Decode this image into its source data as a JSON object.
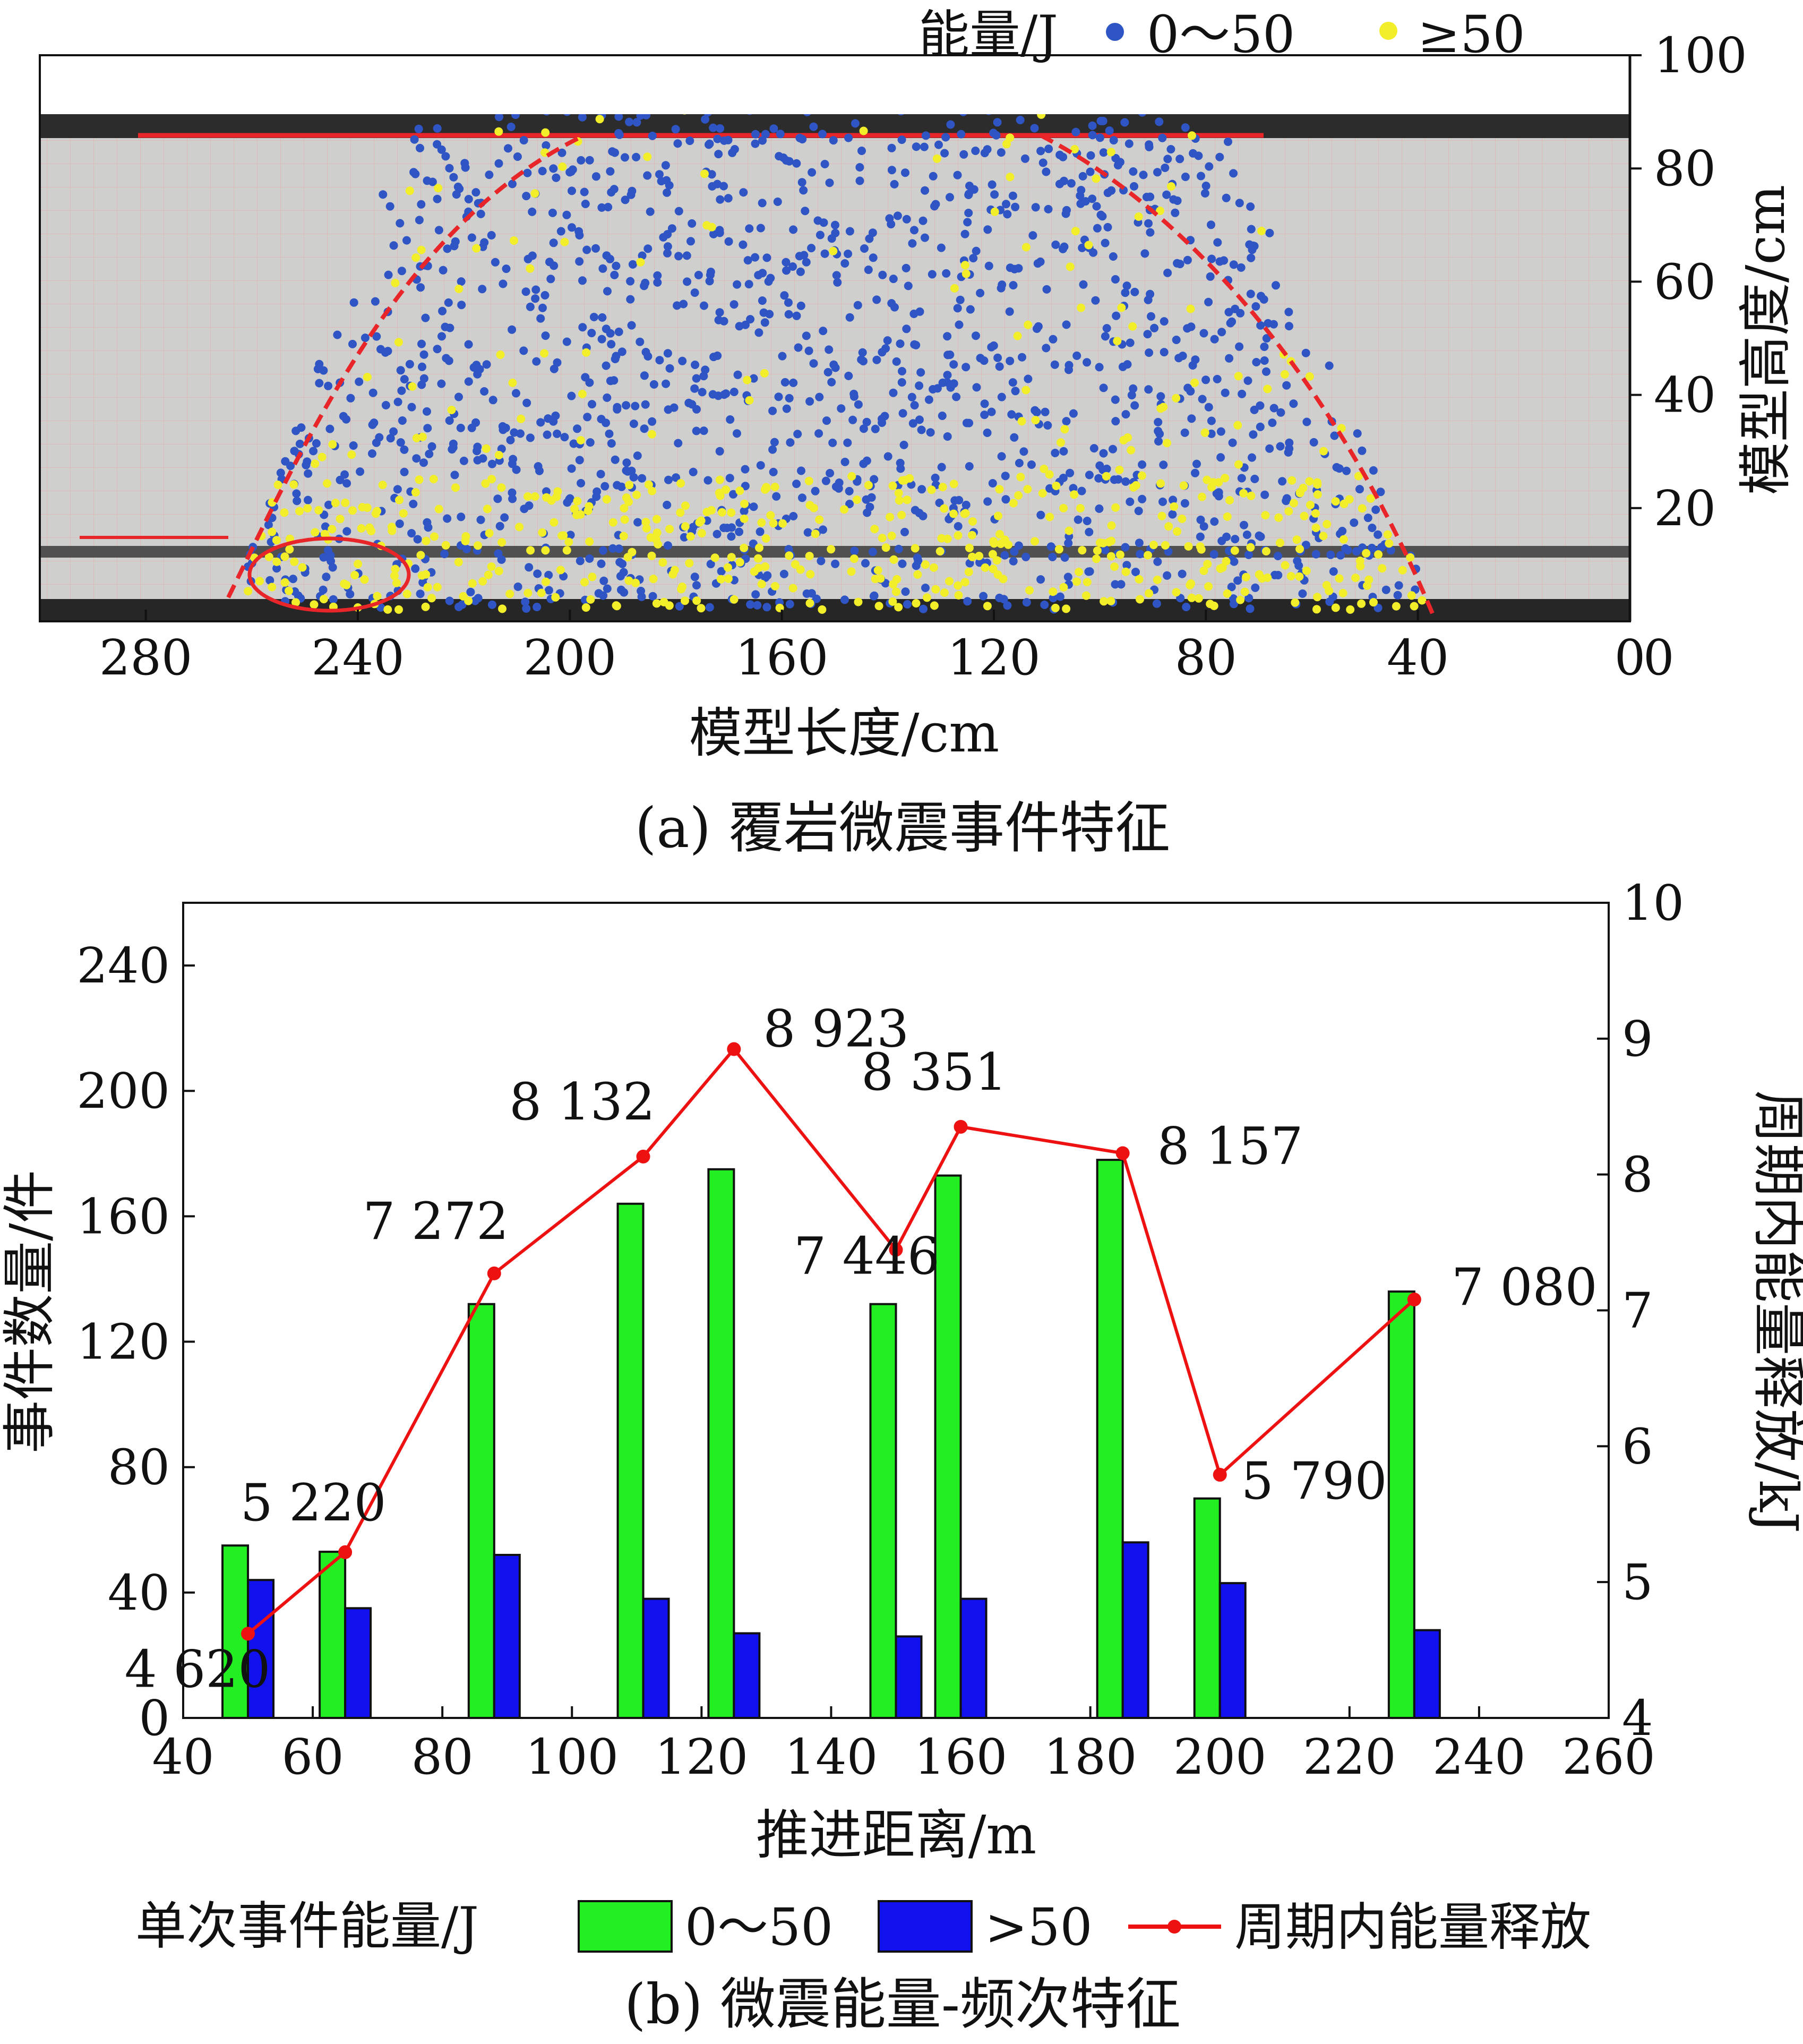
{
  "panel_a": {
    "caption": "(a) 覆岩微震事件特征",
    "legend_title": "能量/J",
    "legend_items": [
      {
        "label": "0～50",
        "color": "#2f55c4"
      },
      {
        "label": "≥50",
        "color": "#f2ee2a"
      }
    ],
    "colors": {
      "blue": "#2f55c4",
      "yellow": "#f2ee2a",
      "dashed": "#e8262a"
    }
  },
  "panel_b": {
    "caption": "(b) 微震能量-频次特征",
    "legend_title": "单次事件能量/J",
    "legend_items": [
      {
        "label": "0～50",
        "color": "#22ee22"
      },
      {
        "label": ">50",
        "color": "#1111ee"
      },
      {
        "label": "周期内能量释放",
        "color": "#ee1111"
      }
    ]
  },
  "chart_data": [
    {
      "type": "scatter",
      "xlabel": "模型长度/cm",
      "ylabel": "模型高度/cm",
      "xlim": [
        300,
        0
      ],
      "ylim": [
        0,
        100
      ],
      "xticks": [
        280,
        240,
        200,
        160,
        120,
        80,
        40,
        0
      ],
      "yticks": [
        20,
        40,
        60,
        80,
        100
      ],
      "series": [
        {
          "name": "0～50",
          "color": "#2f55c4",
          "count": 1500
        },
        {
          "name": "≥50",
          "color": "#f2ee2a",
          "count": 560
        }
      ]
    },
    {
      "type": "bar",
      "xlabel": "推进距离/m",
      "ylabel": "事件数量/件",
      "y2label": "周期内能量释放/kJ",
      "xlim": [
        40,
        260
      ],
      "ylim": [
        0,
        260
      ],
      "y2lim": [
        4,
        10
      ],
      "xticks": [
        40,
        60,
        80,
        100,
        120,
        140,
        160,
        180,
        200,
        220,
        240,
        260
      ],
      "yticks": [
        0,
        40,
        80,
        120,
        160,
        200,
        240
      ],
      "y2ticks": [
        4,
        5,
        6,
        7,
        8,
        9,
        10
      ],
      "x": [
        50,
        65,
        88,
        111,
        125,
        150,
        160,
        185,
        200,
        230
      ],
      "series": [
        {
          "name": "0～50",
          "color": "#22ee22",
          "values": [
            55,
            53,
            132,
            164,
            175,
            132,
            173,
            178,
            70,
            136
          ]
        },
        {
          "name": ">50",
          "color": "#1111ee",
          "values": [
            44,
            35,
            52,
            38,
            27,
            26,
            38,
            56,
            43,
            28
          ]
        },
        {
          "name": "周期内能量释放",
          "color": "#ee1111",
          "axis": "right",
          "values": [
            4.62,
            5.22,
            7.272,
            8.132,
            8.923,
            7.446,
            8.351,
            8.157,
            5.79,
            7.08
          ],
          "labels": [
            "4 620",
            "5 220",
            "7 272",
            "8 132",
            "8 923",
            "7 446",
            "8 351",
            "8 157",
            "5 790",
            "7 080"
          ]
        }
      ]
    }
  ]
}
